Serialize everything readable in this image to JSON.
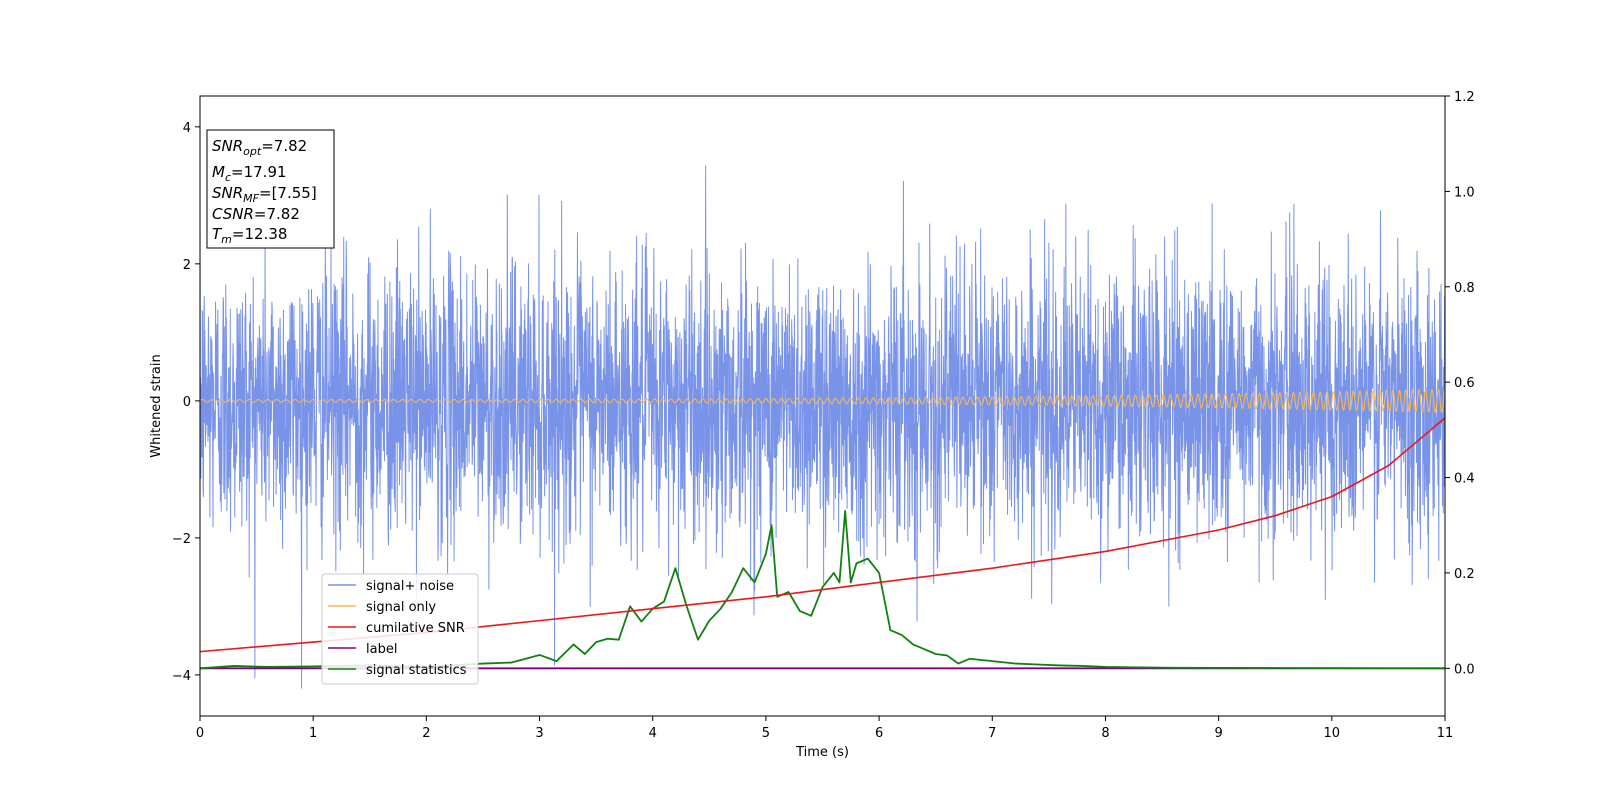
{
  "chart_data": {
    "type": "line",
    "xlabel": "Time (s)",
    "ylabel": "Whitened strain",
    "xlim": [
      0,
      11
    ],
    "ylim": [
      -4.6,
      4.45
    ],
    "y2lim": [
      -0.1,
      1.2
    ],
    "x_ticks": [
      "0",
      "1",
      "2",
      "3",
      "4",
      "5",
      "6",
      "7",
      "8",
      "9",
      "10",
      "11"
    ],
    "y_ticks": [
      "−4",
      "−2",
      "0",
      "2",
      "4"
    ],
    "y2_ticks": [
      "0.0",
      "0.2",
      "0.4",
      "0.6",
      "0.8",
      "1.0",
      "1.2"
    ],
    "grid": false,
    "legend_position": "lower-left",
    "annotation": {
      "snr_opt": {
        "sym": "SNR",
        "sub": "opt",
        "val": "=7.82"
      },
      "mc": {
        "sym": "M",
        "sub": "c",
        "val": "=17.91"
      },
      "snr_mf": {
        "sym": "SNR",
        "sub": "MF",
        "val": "=[7.55]"
      },
      "csnr": {
        "sym": "CSNR",
        "val": "=7.82"
      },
      "tm": {
        "sym": "T",
        "sub": "m",
        "val": "=12.38"
      }
    },
    "series": [
      {
        "name": "signal+ noise",
        "color": "#7893e8",
        "axis": "left",
        "description_kind": "dense noise",
        "std": 1.0,
        "y_range": [
          -4.2,
          4.05
        ]
      },
      {
        "name": "signal only",
        "color": "#f5b75a",
        "axis": "left",
        "amplitude_start": 0.02,
        "amplitude_end": 0.17
      },
      {
        "name": "cumilative SNR",
        "color": "#e8191e",
        "axis": "right",
        "x": [
          0,
          1,
          2,
          3,
          4,
          5,
          6,
          7,
          8,
          9,
          9.5,
          10,
          10.5,
          11
        ],
        "y": [
          0.035,
          0.055,
          0.075,
          0.1,
          0.125,
          0.15,
          0.18,
          0.21,
          0.245,
          0.29,
          0.32,
          0.36,
          0.425,
          0.525
        ]
      },
      {
        "name": "label",
        "color": "#800080",
        "axis": "right",
        "x": [
          0,
          11
        ],
        "y": [
          0,
          0
        ]
      },
      {
        "name": "signal statistics",
        "color": "#118011",
        "axis": "right",
        "x": [
          0,
          0.3,
          0.6,
          1.0,
          1.5,
          2.0,
          2.5,
          2.75,
          3.0,
          3.15,
          3.3,
          3.4,
          3.5,
          3.6,
          3.7,
          3.8,
          3.9,
          4.0,
          4.1,
          4.2,
          4.3,
          4.4,
          4.5,
          4.6,
          4.7,
          4.8,
          4.9,
          5.0,
          5.05,
          5.1,
          5.2,
          5.3,
          5.4,
          5.5,
          5.6,
          5.65,
          5.7,
          5.75,
          5.8,
          5.9,
          6.0,
          6.1,
          6.2,
          6.3,
          6.4,
          6.5,
          6.6,
          6.7,
          6.8,
          7.0,
          7.2,
          7.4,
          7.6,
          7.8,
          8.0,
          8.3,
          8.6,
          11
        ],
        "y": [
          0.0,
          0.005,
          0.003,
          0.004,
          0.006,
          0.003,
          0.01,
          0.012,
          0.028,
          0.015,
          0.05,
          0.03,
          0.055,
          0.062,
          0.06,
          0.13,
          0.098,
          0.125,
          0.14,
          0.21,
          0.13,
          0.06,
          0.1,
          0.125,
          0.16,
          0.21,
          0.18,
          0.24,
          0.3,
          0.15,
          0.16,
          0.12,
          0.11,
          0.17,
          0.2,
          0.18,
          0.33,
          0.18,
          0.22,
          0.23,
          0.2,
          0.08,
          0.07,
          0.05,
          0.04,
          0.03,
          0.027,
          0.01,
          0.02,
          0.015,
          0.01,
          0.008,
          0.006,
          0.005,
          0.003,
          0.002,
          0.001,
          0.0
        ]
      }
    ]
  }
}
